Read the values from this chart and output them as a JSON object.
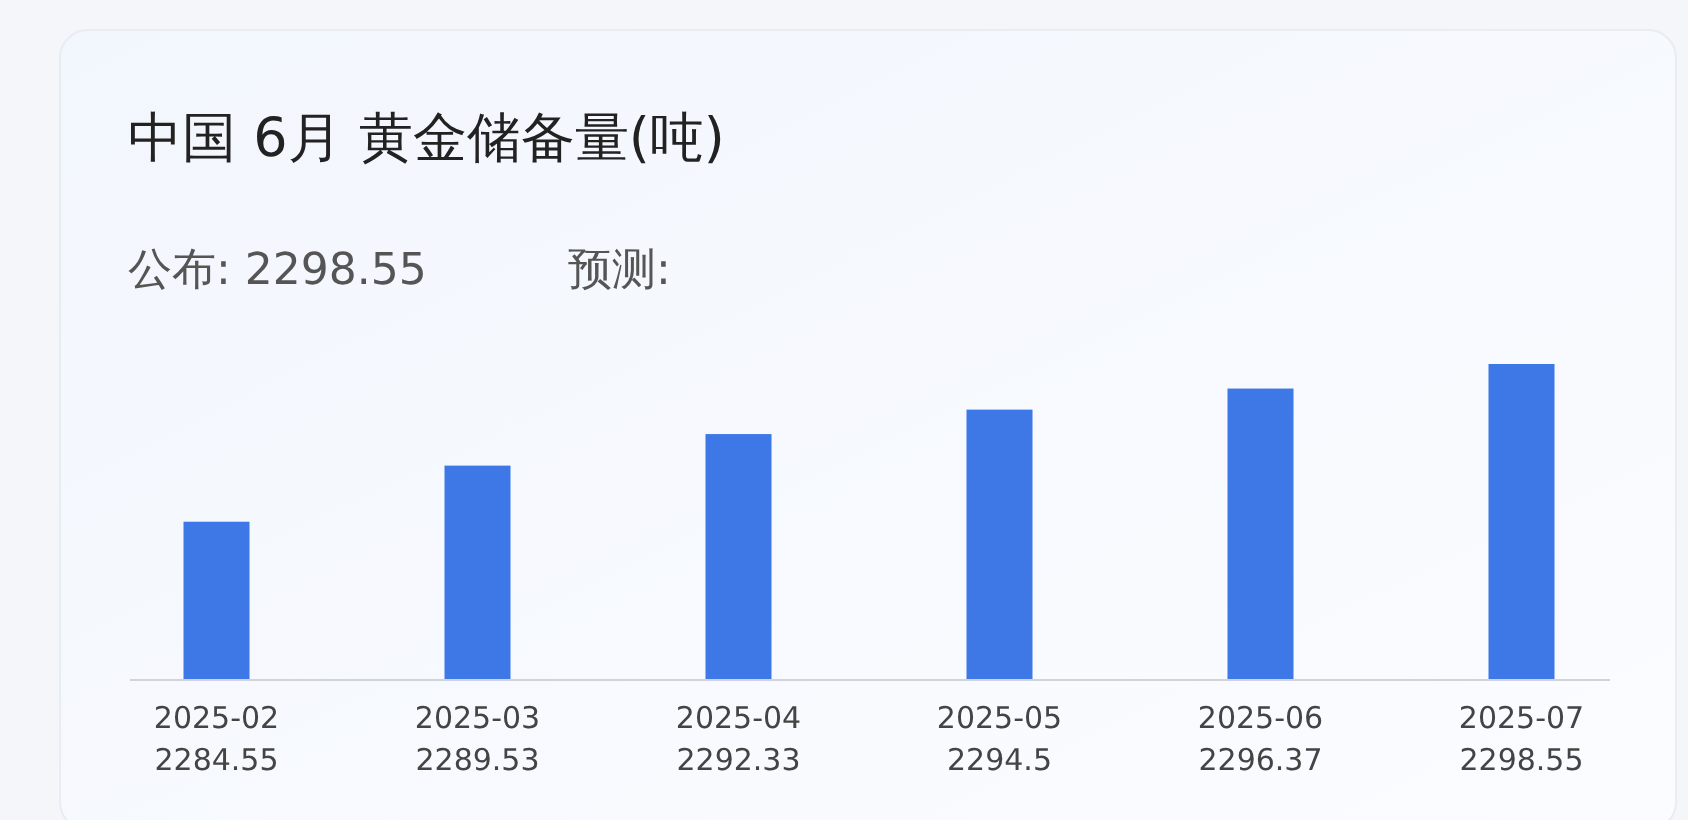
{
  "chart_data": {
    "type": "bar",
    "title": "中国 6月 黄金储备量(吨)",
    "subtitle": "公布: 2298.55",
    "annotations": [
      "预测:"
    ],
    "categories": [
      "2025-02",
      "2025-03",
      "2025-04",
      "2025-05",
      "2025-06",
      "2025-07"
    ],
    "values": [
      2284.55,
      2289.53,
      2292.33,
      2294.5,
      2296.37,
      2298.55
    ],
    "color": "#3d78e6",
    "ylim": [
      2270.5,
      2298.55
    ],
    "tick_labels": "x",
    "data_labels": true,
    "grid": false,
    "legend": false
  }
}
